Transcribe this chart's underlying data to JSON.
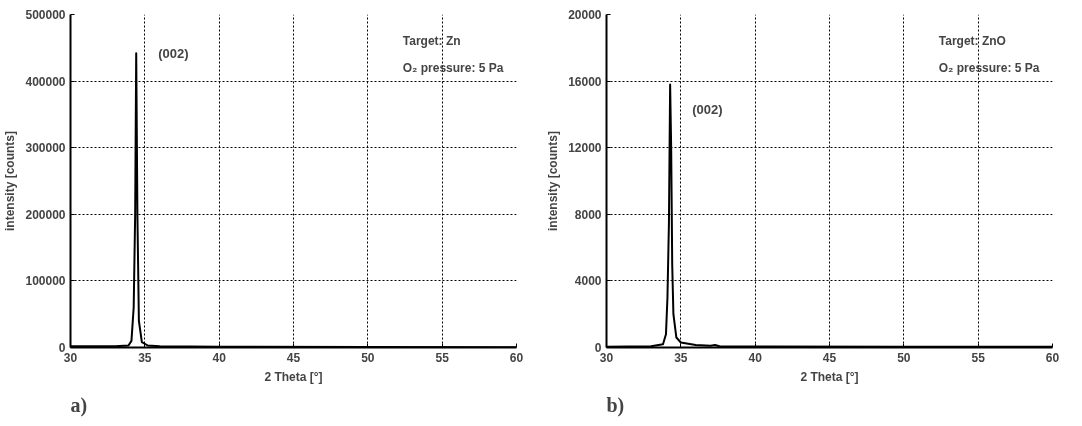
{
  "chart_data": [
    {
      "type": "line",
      "title": "a)",
      "xlabel": "2 Theta [°]",
      "ylabel": "intensity [counts]",
      "x": [
        30,
        33,
        33.9,
        34.1,
        34.25,
        34.35,
        34.42,
        34.5,
        34.6,
        34.8,
        35.2,
        36,
        40,
        50,
        60
      ],
      "series": [
        {
          "color": "#000000",
          "values": [
            2000,
            2000,
            3000,
            10000,
            60000,
            200000,
            442000,
            200000,
            40000,
            8000,
            3000,
            2000,
            1000,
            800,
            500
          ]
        }
      ],
      "xlim": [
        30,
        60
      ],
      "xticks": [
        30,
        35,
        40,
        45,
        50,
        55,
        60
      ],
      "ylim": [
        0,
        500000
      ],
      "yticks": [
        0,
        100000,
        200000,
        300000,
        400000,
        500000
      ],
      "grid": true,
      "marker": "none",
      "line_style": "solid",
      "annotations": [
        {
          "text": "(002)",
          "x": 34.42,
          "y": 442000
        },
        "Target: Zn",
        "O₂ pressure: 5 Pa"
      ]
    },
    {
      "type": "line",
      "title": "b)",
      "xlabel": "2 Theta [°]",
      "ylabel": "intensity [counts]",
      "x": [
        30,
        33,
        33.8,
        34.0,
        34.1,
        34.2,
        34.28,
        34.35,
        34.42,
        34.5,
        34.7,
        35,
        36,
        37,
        37.3,
        37.6,
        40,
        50,
        60
      ],
      "series": [
        {
          "color": "#000000",
          "values": [
            50,
            80,
            200,
            800,
            3000,
            7500,
            15800,
            12000,
            5000,
            2000,
            600,
            300,
            150,
            100,
            150,
            80,
            60,
            50,
            40
          ]
        }
      ],
      "xlim": [
        30,
        60
      ],
      "xticks": [
        30,
        35,
        40,
        45,
        50,
        55,
        60
      ],
      "ylim": [
        0,
        20000
      ],
      "yticks": [
        0,
        4000,
        8000,
        12000,
        16000,
        20000
      ],
      "grid": true,
      "marker": "none",
      "line_style": "solid",
      "annotations": [
        {
          "text": "(002)",
          "x": 34.28,
          "y": 15800
        },
        "Target: ZnO",
        "O₂ pressure: 5 Pa"
      ]
    }
  ]
}
